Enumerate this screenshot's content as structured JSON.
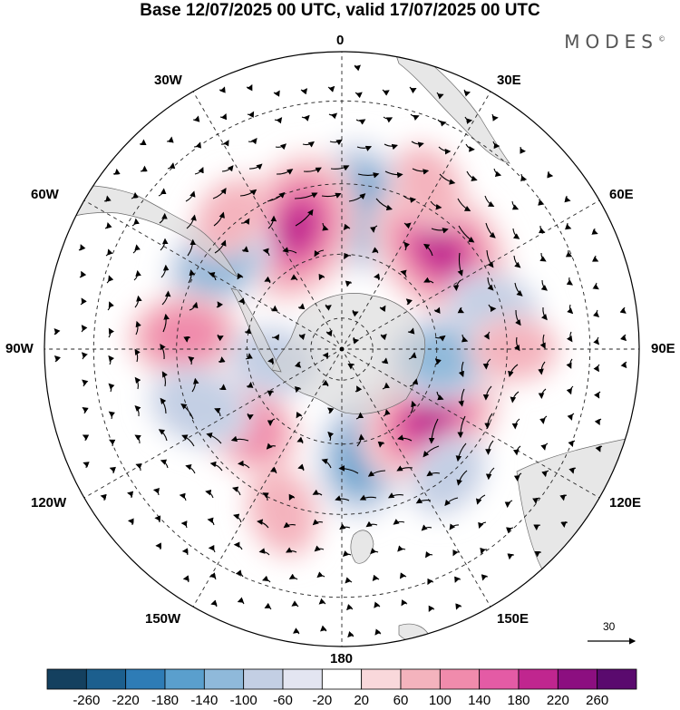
{
  "title": "Base 12/07/2025 00 UTC, valid 17/07/2025 00 UTC",
  "brand": {
    "name": "MODES",
    "mark": "©"
  },
  "map": {
    "projection": "south-polar-stereographic",
    "longitude_labels": {
      "0": "0",
      "30E": "30E",
      "60E": "60E",
      "90E": "90E",
      "120E": "120E",
      "150E": "150E",
      "180": "180",
      "150W": "150W",
      "120W": "120W",
      "90W": "90W",
      "60W": "60W",
      "30W": "30W"
    },
    "reference_vector": {
      "value": "30"
    }
  },
  "colorbar": {
    "tick_labels": [
      "-260",
      "-220",
      "-180",
      "-140",
      "-100",
      "-60",
      "-20",
      "20",
      "60",
      "100",
      "140",
      "180",
      "220",
      "260"
    ],
    "colors": [
      "#14405f",
      "#1c5f8e",
      "#2e7cb6",
      "#5a9fcd",
      "#8fb9da",
      "#c3cfe4",
      "#e3e5f1",
      "#ffffff",
      "#f9d8db",
      "#f4b3bd",
      "#f08bac",
      "#e45ba5",
      "#c0268f",
      "#8c0f80",
      "#5a0a6e"
    ]
  },
  "anomalies": [
    {
      "lon": 8,
      "lat": -46,
      "value": -150
    },
    {
      "lon": -20,
      "lat": -50,
      "value": 190
    },
    {
      "lon": 45,
      "lat": -47,
      "value": 200
    },
    {
      "lon": -55,
      "lat": -44,
      "value": -110
    },
    {
      "lon": -85,
      "lat": -42,
      "value": 110
    },
    {
      "lon": -128,
      "lat": -52,
      "value": 115
    },
    {
      "lon": -112,
      "lat": -43,
      "value": -90
    },
    {
      "lon": 168,
      "lat": -56,
      "value": -140
    },
    {
      "lon": 128,
      "lat": -55,
      "value": 190
    },
    {
      "lon": 95,
      "lat": -58,
      "value": -110
    },
    {
      "lon": 75,
      "lat": -42,
      "value": -70
    },
    {
      "lon": 90,
      "lat": -38,
      "value": 60
    },
    {
      "lon": -160,
      "lat": -38,
      "value": 70
    },
    {
      "lon": 140,
      "lat": -40,
      "value": -60
    },
    {
      "lon": 28,
      "lat": -35,
      "value": 60
    },
    {
      "lon": -40,
      "lat": -38,
      "value": 60
    },
    {
      "lon": -100,
      "lat": -68,
      "value": -70
    }
  ]
}
